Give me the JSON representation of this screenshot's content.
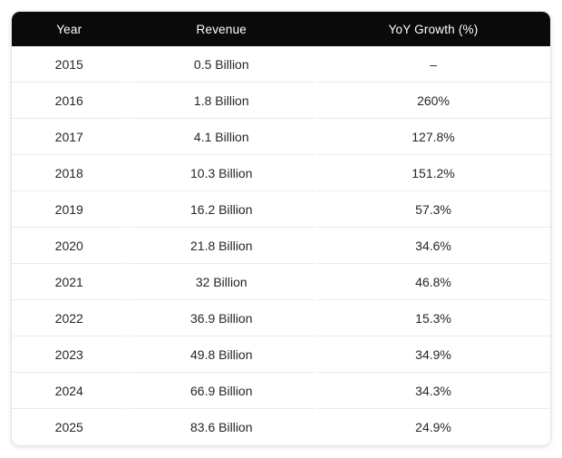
{
  "table": {
    "columns": [
      {
        "key": "year",
        "label": "Year"
      },
      {
        "key": "revenue",
        "label": "Revenue"
      },
      {
        "key": "growth",
        "label": "YoY Growth (%)"
      }
    ],
    "rows": [
      {
        "year": "2015",
        "revenue": "0.5 Billion",
        "growth": "–"
      },
      {
        "year": "2016",
        "revenue": "1.8 Billion",
        "growth": "260%"
      },
      {
        "year": "2017",
        "revenue": "4.1 Billion",
        "growth": "127.8%"
      },
      {
        "year": "2018",
        "revenue": "10.3 Billion",
        "growth": "151.2%"
      },
      {
        "year": "2019",
        "revenue": "16.2 Billion",
        "growth": "57.3%"
      },
      {
        "year": "2020",
        "revenue": "21.8 Billion",
        "growth": "34.6%"
      },
      {
        "year": "2021",
        "revenue": "32 Billion",
        "growth": "46.8%"
      },
      {
        "year": "2022",
        "revenue": "36.9 Billion",
        "growth": "15.3%"
      },
      {
        "year": "2023",
        "revenue": "49.8 Billion",
        "growth": "34.9%"
      },
      {
        "year": "2024",
        "revenue": "66.9 Billion",
        "growth": "34.3%"
      },
      {
        "year": "2025",
        "revenue": "83.6 Billion",
        "growth": "24.9%"
      }
    ]
  },
  "chart_data": {
    "type": "table",
    "title": "",
    "columns": [
      "Year",
      "Revenue",
      "YoY Growth (%)"
    ],
    "years": [
      2015,
      2016,
      2017,
      2018,
      2019,
      2020,
      2021,
      2022,
      2023,
      2024,
      2025
    ],
    "revenue_billions": [
      0.5,
      1.8,
      4.1,
      10.3,
      16.2,
      21.8,
      32,
      36.9,
      49.8,
      66.9,
      83.6
    ],
    "yoy_growth_pct": [
      null,
      260,
      127.8,
      151.2,
      57.3,
      34.6,
      46.8,
      15.3,
      34.9,
      34.3,
      24.9
    ]
  },
  "colors": {
    "header_bg": "#0a0a0b",
    "header_text": "#ffffff",
    "body_text": "#26262c",
    "row_divider": "#ebebeb",
    "card_border": "#e5e5e5",
    "card_bg": "#ffffff"
  }
}
